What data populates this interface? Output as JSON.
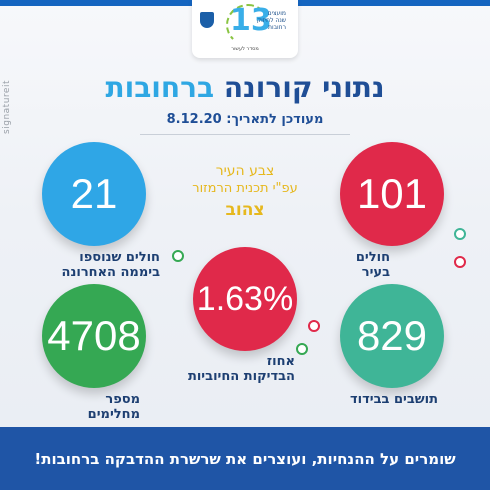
{
  "logo": {
    "number": "13",
    "text_lines": [
      "מועצים",
      "שנה לחיזוק",
      "רחובות"
    ],
    "subtitle": "מסדר לעשור"
  },
  "watermark": "signatureit",
  "title": {
    "part_dark": "נתוני קורונה",
    "part_light": "ברחובות"
  },
  "updated": "מעודכן לתאריך: 8.12.20",
  "city_color": {
    "line1": "צבע העיר",
    "line2": "עפ\"י תכנית הרמזור",
    "value": "צהוב"
  },
  "stats": {
    "patients": {
      "value": "101",
      "label": "חולים בעיר"
    },
    "new_patients": {
      "value": "21",
      "label_line1": "חולים שנוספו",
      "label_line2": "ביממה האחרונה"
    },
    "positive_rate": {
      "value": "1.63%",
      "label_line1": "אחוז",
      "label_line2": "הבדיקות החיוביות"
    },
    "isolation": {
      "value": "829",
      "label": "תושבים בבידוד"
    },
    "recovered": {
      "value": "4708",
      "label": "מספר מחלימים"
    }
  },
  "footer": "שומרים על ההנחיות, ועוצרים את שרשרת ההדבקה ברחובות!",
  "colors": {
    "blue": "#2fa6e6",
    "red": "#e0294a",
    "green": "#35a853",
    "teal": "#3fb597",
    "yellow": "#e6b81e",
    "navy": "#1f55a6"
  }
}
